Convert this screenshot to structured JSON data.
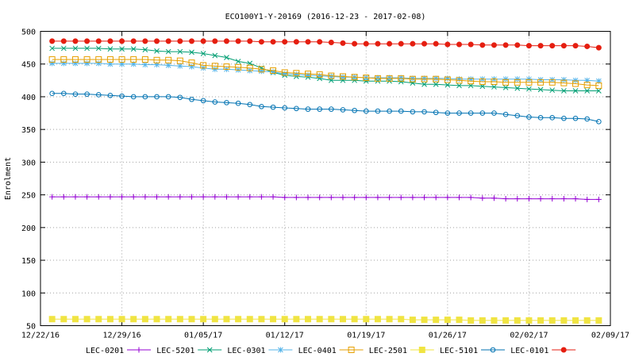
{
  "chart_data": {
    "type": "line",
    "title": "ECO100Y1-Y-20169 (2016-12-23 - 2017-02-08)",
    "xlabel": "",
    "ylabel": "Enrolment",
    "x_start": "2016-12-22",
    "x_end": "2017-02-09",
    "xlim": [
      "12/22/16",
      "02/09/17"
    ],
    "ylim": [
      50,
      500
    ],
    "grid": true,
    "legend_position": "bottom",
    "x_ticks": [
      "12/22/16",
      "12/29/16",
      "01/05/17",
      "01/12/17",
      "01/19/17",
      "01/26/17",
      "02/02/17",
      "02/09/17"
    ],
    "y_ticks": [
      50,
      100,
      150,
      200,
      250,
      300,
      350,
      400,
      450,
      500
    ],
    "x_dates": [
      "12/23/16",
      "12/24/16",
      "12/25/16",
      "12/26/16",
      "12/27/16",
      "12/28/16",
      "12/29/16",
      "12/30/16",
      "12/31/16",
      "01/01/17",
      "01/02/17",
      "01/03/17",
      "01/04/17",
      "01/05/17",
      "01/06/17",
      "01/07/17",
      "01/08/17",
      "01/09/17",
      "01/10/17",
      "01/11/17",
      "01/12/17",
      "01/13/17",
      "01/14/17",
      "01/15/17",
      "01/16/17",
      "01/17/17",
      "01/18/17",
      "01/19/17",
      "01/20/17",
      "01/21/17",
      "01/22/17",
      "01/23/17",
      "01/24/17",
      "01/25/17",
      "01/26/17",
      "01/27/17",
      "01/28/17",
      "01/29/17",
      "01/30/17",
      "01/31/17",
      "02/01/17",
      "02/02/17",
      "02/03/17",
      "02/04/17",
      "02/05/17",
      "02/06/17",
      "02/07/17",
      "02/08/17"
    ],
    "series": [
      {
        "name": "LEC-0201",
        "color": "#9400d3",
        "marker": "plus",
        "values": [
          247,
          247,
          247,
          247,
          247,
          247,
          247,
          247,
          247,
          247,
          247,
          247,
          247,
          247,
          247,
          247,
          247,
          247,
          247,
          247,
          246,
          246,
          246,
          246,
          246,
          246,
          246,
          246,
          246,
          246,
          246,
          246,
          246,
          246,
          246,
          246,
          246,
          245,
          245,
          244,
          244,
          244,
          244,
          244,
          244,
          244,
          243,
          243
        ]
      },
      {
        "name": "LEC-5201",
        "color": "#009e73",
        "marker": "x",
        "values": [
          474,
          474,
          474,
          474,
          474,
          473,
          473,
          473,
          472,
          470,
          469,
          469,
          468,
          466,
          463,
          460,
          454,
          451,
          444,
          437,
          433,
          431,
          430,
          428,
          425,
          425,
          425,
          424,
          424,
          424,
          423,
          421,
          419,
          419,
          418,
          417,
          417,
          416,
          415,
          414,
          413,
          412,
          411,
          410,
          409,
          409,
          409,
          409
        ]
      },
      {
        "name": "LEC-0301",
        "color": "#56b4e9",
        "marker": "star",
        "values": [
          451,
          451,
          451,
          451,
          451,
          450,
          450,
          450,
          449,
          449,
          448,
          447,
          446,
          444,
          442,
          442,
          441,
          440,
          439,
          438,
          435,
          434,
          433,
          432,
          431,
          430,
          430,
          429,
          429,
          429,
          429,
          428,
          428,
          428,
          428,
          427,
          427,
          427,
          427,
          427,
          427,
          427,
          426,
          426,
          426,
          425,
          425,
          424
        ]
      },
      {
        "name": "LEC-0401",
        "color": "#e69f00",
        "marker": "square",
        "values": [
          457,
          457,
          457,
          457,
          457,
          457,
          457,
          457,
          457,
          456,
          456,
          455,
          452,
          448,
          447,
          446,
          445,
          444,
          442,
          440,
          437,
          436,
          435,
          434,
          432,
          431,
          430,
          429,
          428,
          428,
          428,
          427,
          427,
          427,
          426,
          425,
          424,
          423,
          423,
          422,
          422,
          422,
          422,
          422,
          421,
          420,
          418,
          417
        ]
      },
      {
        "name": "LEC-2501",
        "color": "#f0e442",
        "marker": "filled-square",
        "values": [
          60,
          60,
          60,
          60,
          60,
          60,
          60,
          60,
          60,
          60,
          60,
          60,
          60,
          60,
          60,
          60,
          60,
          60,
          60,
          60,
          60,
          60,
          60,
          60,
          60,
          60,
          60,
          60,
          60,
          60,
          60,
          59,
          59,
          59,
          59,
          59,
          58,
          58,
          58,
          58,
          58,
          58,
          58,
          58,
          58,
          58,
          58,
          58
        ]
      },
      {
        "name": "LEC-5101",
        "color": "#0072b2",
        "marker": "circle",
        "values": [
          405,
          405,
          404,
          404,
          403,
          402,
          401,
          400,
          400,
          400,
          400,
          399,
          396,
          394,
          392,
          391,
          390,
          388,
          385,
          384,
          383,
          382,
          381,
          381,
          381,
          380,
          379,
          378,
          378,
          378,
          378,
          377,
          377,
          376,
          375,
          375,
          375,
          375,
          375,
          373,
          371,
          369,
          368,
          368,
          367,
          367,
          366,
          362
        ]
      },
      {
        "name": "LEC-0101",
        "color": "#e51e10",
        "marker": "filled-circle",
        "values": [
          485,
          485,
          485,
          485,
          485,
          485,
          485,
          485,
          485,
          485,
          485,
          485,
          485,
          485,
          485,
          485,
          485,
          485,
          484,
          484,
          484,
          484,
          484,
          484,
          483,
          482,
          481,
          481,
          481,
          481,
          481,
          481,
          481,
          481,
          480,
          480,
          480,
          479,
          479,
          479,
          479,
          478,
          478,
          478,
          478,
          478,
          477,
          475
        ]
      }
    ]
  }
}
